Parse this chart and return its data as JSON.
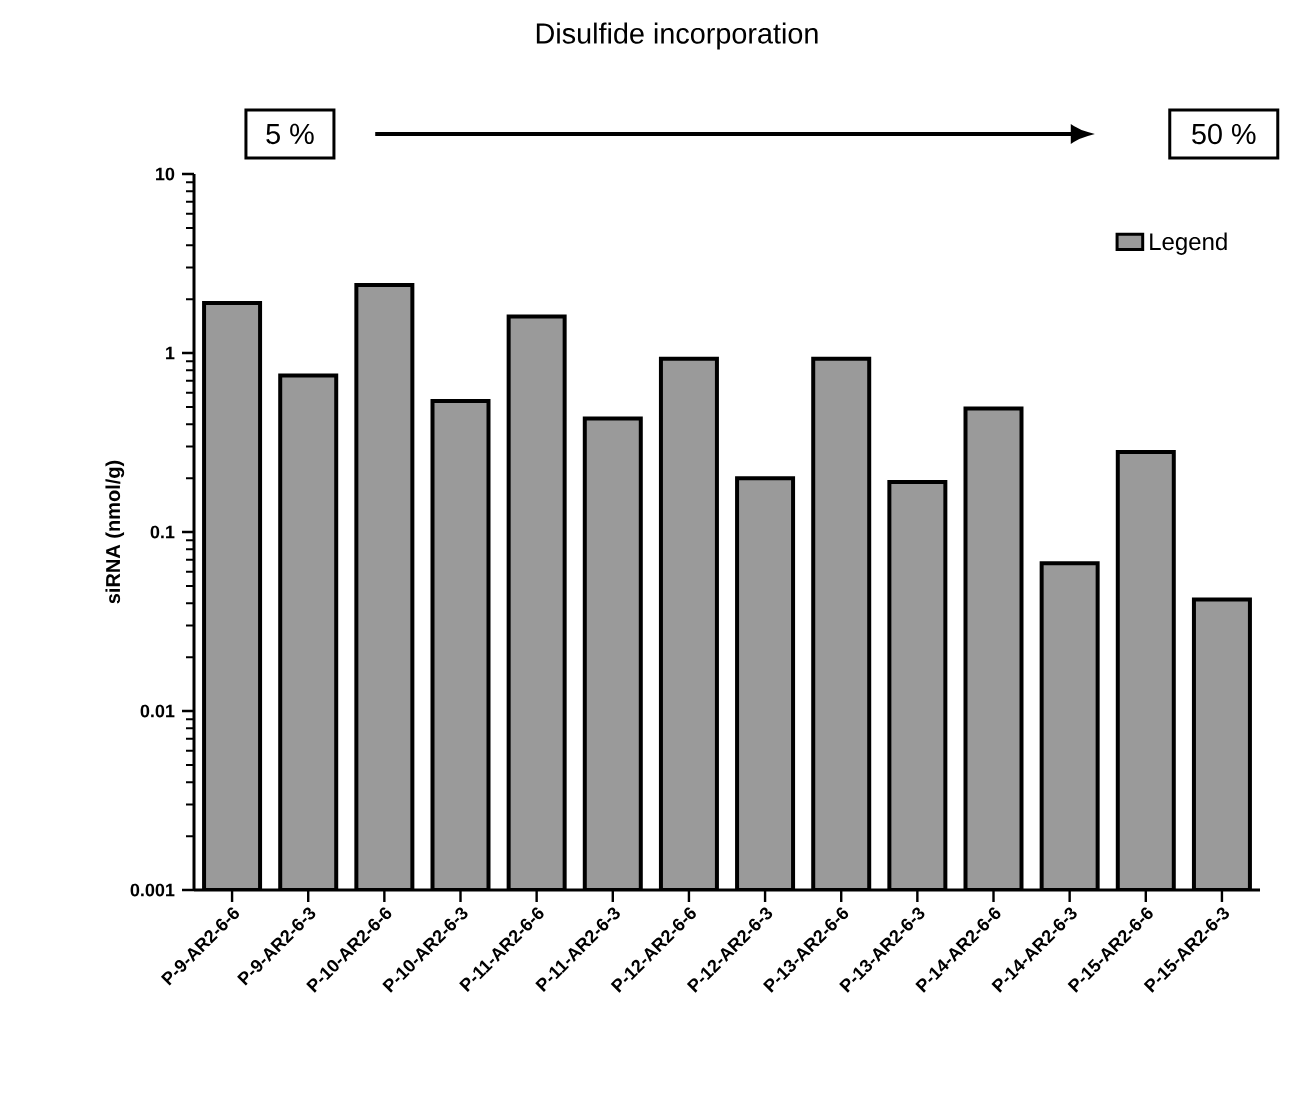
{
  "chart_data": {
    "type": "bar",
    "title": "Disulfide incorporation",
    "ylabel": "siRNA (nmol/g)",
    "annotations": [
      "5 %",
      "50 %"
    ],
    "categories": [
      "P-9-AR2-6-6",
      "P-9-AR2-6-3",
      "P-10-AR2-6-6",
      "P-10-AR2-6-3",
      "P-11-AR2-6-6",
      "P-11-AR2-6-3",
      "P-12-AR2-6-6",
      "P-12-AR2-6-3",
      "P-13-AR2-6-6",
      "P-13-AR2-6-3",
      "P-14-AR2-6-6",
      "P-14-AR2-6-3",
      "P-15-AR2-6-6",
      "P-15-AR2-6-3"
    ],
    "series": [
      {
        "name": "Legend",
        "color": "#9a9a9a",
        "values": [
          1.9,
          0.75,
          2.4,
          0.54,
          1.6,
          0.43,
          0.93,
          0.2,
          0.93,
          0.19,
          0.49,
          0.067,
          0.28,
          0.042
        ]
      }
    ],
    "log": "y",
    "ylim": [
      0.001,
      10
    ],
    "yticks": [
      {
        "value": 0.001,
        "label": "0.001"
      },
      {
        "value": 0.01,
        "label": "0.01"
      },
      {
        "value": 0.1,
        "label": "0.1"
      },
      {
        "value": 1,
        "label": "1"
      },
      {
        "value": 10,
        "label": "10"
      }
    ],
    "legend": "top right"
  }
}
